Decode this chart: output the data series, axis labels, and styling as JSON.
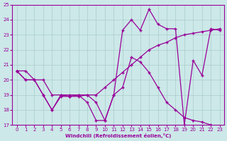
{
  "xlabel": "Windchill (Refroidissement éolien,°C)",
  "bg_color": "#cce8e8",
  "grid_color": "#aacccc",
  "line_color": "#990099",
  "xlim": [
    -0.5,
    23.5
  ],
  "ylim": [
    17,
    25
  ],
  "yticks": [
    17,
    18,
    19,
    20,
    21,
    22,
    23,
    24,
    25
  ],
  "xticks": [
    0,
    1,
    2,
    3,
    4,
    5,
    6,
    7,
    8,
    9,
    10,
    11,
    12,
    13,
    14,
    15,
    16,
    17,
    18,
    19,
    20,
    21,
    22,
    23
  ],
  "line1_x": [
    0,
    1,
    2,
    3,
    4,
    5,
    6,
    7,
    8,
    9,
    10,
    11,
    12,
    13,
    14,
    15,
    16,
    17,
    18,
    19,
    20,
    21,
    22,
    23
  ],
  "line1_y": [
    20.6,
    20.6,
    20.0,
    20.0,
    19.0,
    19.0,
    19.0,
    19.0,
    19.0,
    19.0,
    19.5,
    20.0,
    20.5,
    21.0,
    21.5,
    22.0,
    22.3,
    22.5,
    22.8,
    23.0,
    23.1,
    23.2,
    23.3,
    23.4
  ],
  "line2_x": [
    0,
    1,
    2,
    3,
    4,
    5,
    6,
    7,
    8,
    9,
    10,
    11,
    12,
    13,
    14,
    15,
    16,
    17,
    18,
    19,
    20,
    21,
    22,
    23
  ],
  "line2_y": [
    20.6,
    20.0,
    20.0,
    19.0,
    18.0,
    19.0,
    18.9,
    18.9,
    19.0,
    18.5,
    17.3,
    19.0,
    23.3,
    24.0,
    23.3,
    24.7,
    23.7,
    23.4,
    23.4,
    17.0,
    21.3,
    20.3,
    23.4,
    23.3
  ],
  "line3_x": [
    0,
    1,
    2,
    3,
    4,
    5,
    6,
    7,
    8,
    9,
    10,
    11,
    12,
    13,
    14,
    15,
    16,
    17,
    18,
    19,
    20,
    21,
    22,
    23
  ],
  "line3_y": [
    20.6,
    20.0,
    20.0,
    19.0,
    18.0,
    18.9,
    18.9,
    19.0,
    18.5,
    17.3,
    17.3,
    19.0,
    19.5,
    21.5,
    21.2,
    20.5,
    19.5,
    18.5,
    18.0,
    17.5,
    17.3,
    17.2,
    17.0,
    16.8
  ]
}
